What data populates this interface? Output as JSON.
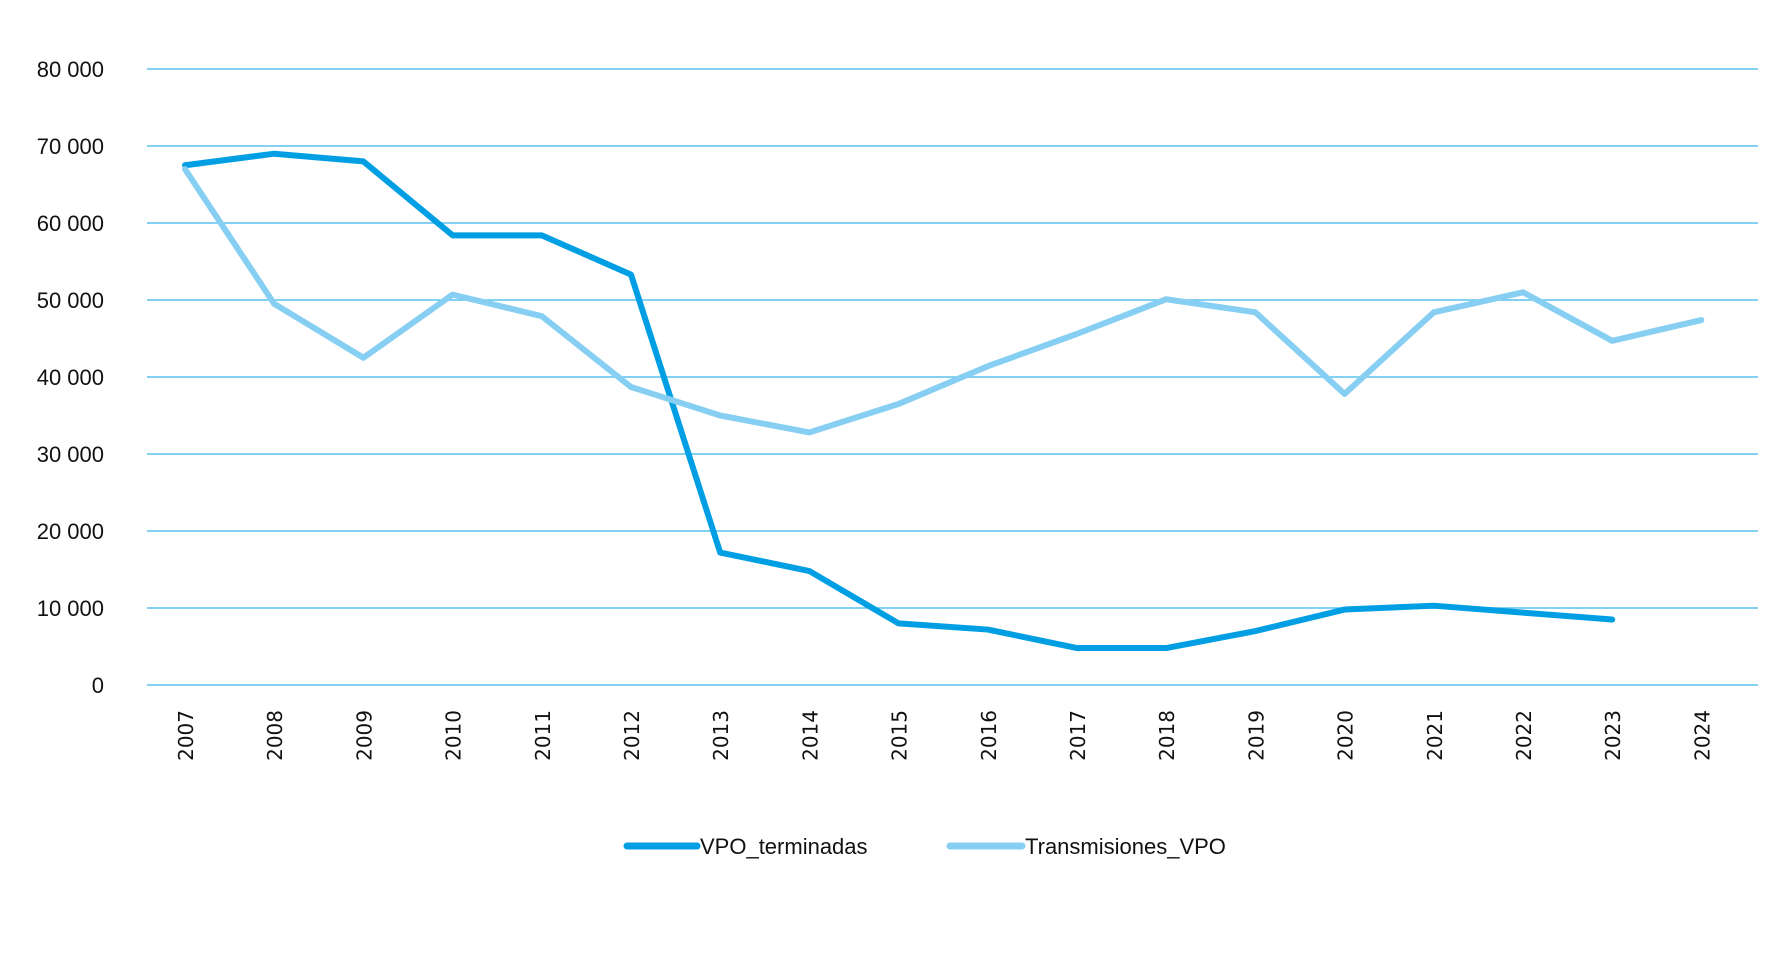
{
  "chart_data": {
    "type": "line",
    "title": "",
    "xlabel": "",
    "ylabel": "",
    "ylim": [
      0,
      80000
    ],
    "yticks": [
      0,
      10000,
      20000,
      30000,
      40000,
      50000,
      60000,
      70000,
      80000
    ],
    "ytick_labels": [
      "0",
      "10 000",
      "20 000",
      "30 000",
      "40 000",
      "50 000",
      "60 000",
      "70 000",
      "80 000"
    ],
    "grid": true,
    "legend_position": "bottom-center",
    "categories": [
      "2007",
      "2008",
      "2009",
      "2010",
      "2011",
      "2012",
      "2013",
      "2014",
      "2015",
      "2016",
      "2017",
      "2018",
      "2019",
      "2020",
      "2021",
      "2022",
      "2023",
      "2024"
    ],
    "series": [
      {
        "name": "VPO_terminadas",
        "color": "#009FE3",
        "values": [
          67500,
          69000,
          68000,
          58400,
          58400,
          53300,
          17200,
          14800,
          8000,
          7200,
          4800,
          4800,
          7000,
          9800,
          10300,
          9400,
          8500,
          null
        ]
      },
      {
        "name": "Transmisiones_VPO",
        "color": "#86CFF3",
        "values": [
          67000,
          49500,
          42500,
          50700,
          47900,
          38700,
          35000,
          32800,
          36500,
          41400,
          45600,
          50100,
          48400,
          37800,
          48400,
          51000,
          44700,
          47400
        ]
      }
    ],
    "gridline_color": "#5BC0EB"
  }
}
